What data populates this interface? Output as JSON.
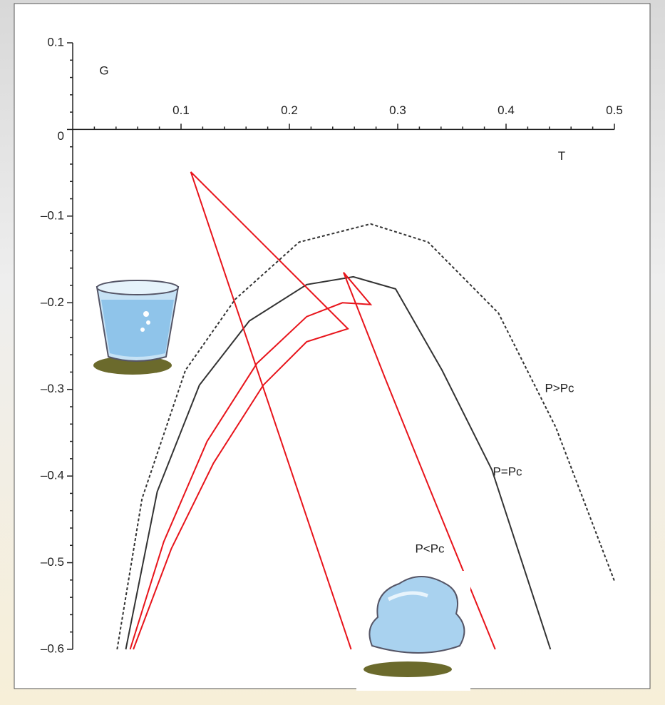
{
  "chart_data": {
    "type": "line",
    "x_label": "T",
    "y_label": "G",
    "xlim": [
      0,
      0.5
    ],
    "ylim": [
      -0.6,
      0.1
    ],
    "xticks": [
      0.1,
      0.2,
      0.3,
      0.4,
      0.5
    ],
    "yticks": [
      0.1,
      0,
      {
        "value": -0.1,
        "label": "–0.1"
      },
      {
        "value": -0.2,
        "label": "–0.2"
      },
      {
        "value": -0.3,
        "label": "–0.3"
      },
      {
        "value": -0.4,
        "label": "–0.4"
      },
      {
        "value": -0.5,
        "label": "–0.5"
      },
      {
        "value": -0.6,
        "label": "–0.6"
      }
    ],
    "series": [
      {
        "name": "P>Pc",
        "color": "#333333",
        "dash": true,
        "x": [
          0.041,
          0.064,
          0.104,
          0.15,
          0.209,
          0.275,
          0.328,
          0.393,
          0.446,
          0.5
        ],
        "values": [
          -0.6,
          -0.426,
          -0.278,
          -0.196,
          -0.13,
          -0.109,
          -0.13,
          -0.212,
          -0.344,
          -0.521
        ]
      },
      {
        "name": "P=Pc",
        "color": "#333333",
        "dash": false,
        "x": [
          0.049,
          0.078,
          0.117,
          0.163,
          0.216,
          0.259,
          0.298,
          0.341,
          0.387,
          0.441
        ],
        "values": [
          -0.6,
          -0.418,
          -0.295,
          -0.221,
          -0.179,
          -0.17,
          -0.184,
          -0.278,
          -0.393,
          -0.6
        ]
      },
      {
        "name": "P<Pc",
        "color": "#e8141b",
        "dash": false,
        "x": [
          0.053,
          0.084,
          0.124,
          0.17,
          0.216,
          0.249,
          0.275,
          0.25,
          0.288,
          0.328,
          0.39,
          null,
          0.056,
          0.091,
          0.13,
          0.176,
          0.216,
          0.254,
          0.109,
          0.257
        ],
        "values": [
          -0.6,
          -0.476,
          -0.36,
          -0.27,
          -0.216,
          -0.2,
          -0.202,
          -0.165,
          -0.286,
          -0.41,
          -0.6,
          null,
          -0.6,
          -0.484,
          -0.385,
          -0.295,
          -0.245,
          -0.23,
          -0.049,
          -0.6
        ]
      }
    ]
  }
}
